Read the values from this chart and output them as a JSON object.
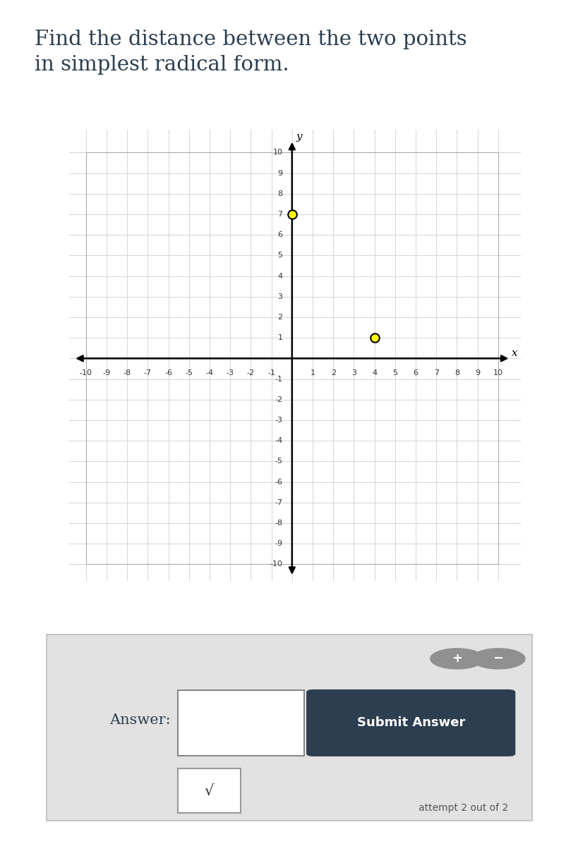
{
  "title_line1": "Find the distance between the two points",
  "title_line2": "in simplest radical form.",
  "title_fontsize": 21,
  "title_color": "#2c3e50",
  "bg_color": "#ffffff",
  "outer_bg": "#e8e8e8",
  "grid_color": "#d5d5d5",
  "axis_color": "#000000",
  "grid_xlim": [
    -10,
    10
  ],
  "grid_ylim": [
    -10,
    10
  ],
  "point1": [
    0,
    7
  ],
  "point2": [
    4,
    1
  ],
  "point1_fill": "#ffff00",
  "point2_fill": "#ffff00",
  "point_edge": "#000000",
  "point_size": 9,
  "answer_label": "Answer:",
  "submit_label": "Submit Answer",
  "submit_bg": "#2d3e50",
  "submit_fg": "#ffffff",
  "attempt_text": "attempt 2 out of 2",
  "sqrt_symbol": "√",
  "panel_bg": "#e2e2e2",
  "panel_border": "#cccccc",
  "tick_fontsize": 8,
  "tick_color": "#333333"
}
